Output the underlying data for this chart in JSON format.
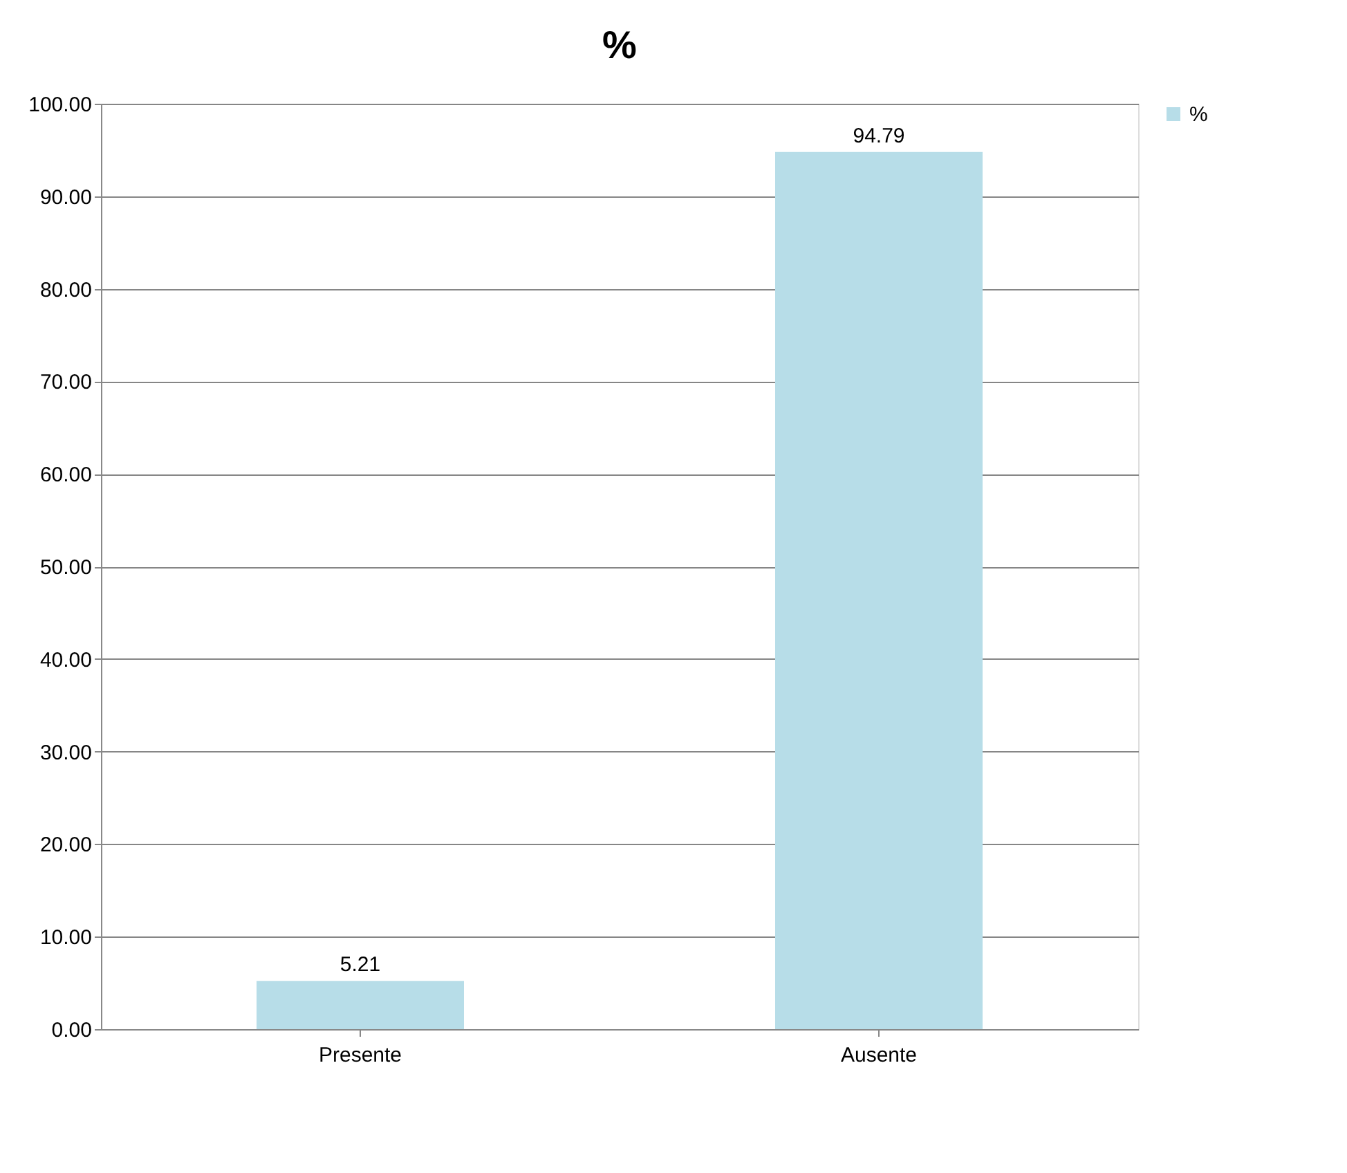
{
  "chart_data": {
    "type": "bar",
    "title": "%",
    "categories": [
      "Presente",
      "Ausente"
    ],
    "series": [
      {
        "name": "%",
        "color": "#b7dde8",
        "values": [
          5.21,
          94.79
        ]
      }
    ],
    "ylim": [
      0,
      100
    ],
    "yticks": [
      {
        "value": 0,
        "label": "0.00"
      },
      {
        "value": 10,
        "label": "10.00"
      },
      {
        "value": 20,
        "label": "20.00"
      },
      {
        "value": 30,
        "label": "30.00"
      },
      {
        "value": 40,
        "label": "40.00"
      },
      {
        "value": 50,
        "label": "50.00"
      },
      {
        "value": 60,
        "label": "60.00"
      },
      {
        "value": 70,
        "label": "70.00"
      },
      {
        "value": 80,
        "label": "80.00"
      },
      {
        "value": 90,
        "label": "90.00"
      },
      {
        "value": 100,
        "label": "100.00"
      }
    ],
    "grid": "y",
    "legend": "right",
    "data_labels": true
  }
}
